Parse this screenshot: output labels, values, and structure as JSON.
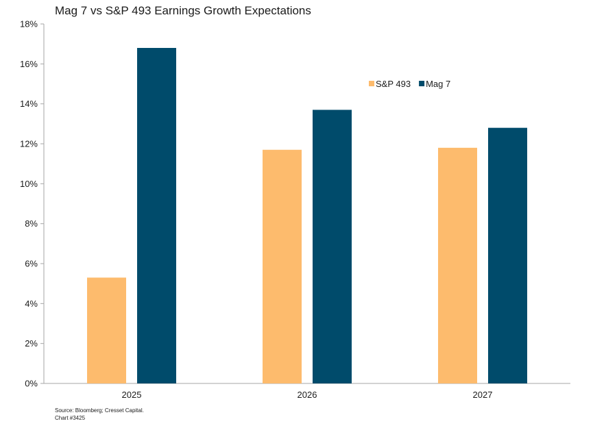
{
  "chart_data": {
    "type": "bar",
    "title": "Mag 7 vs S&P 493 Earnings Growth Expectations",
    "categories": [
      "2025",
      "2026",
      "2027"
    ],
    "series": [
      {
        "name": "S&P 493",
        "values": [
          5.3,
          11.7,
          11.8
        ],
        "color": "#FDBB6D"
      },
      {
        "name": "Mag 7",
        "values": [
          16.8,
          13.7,
          12.8
        ],
        "color": "#004B6B"
      }
    ],
    "ylim": [
      0,
      18
    ],
    "yticks": [
      0,
      2,
      4,
      6,
      8,
      10,
      12,
      14,
      16,
      18
    ],
    "ytick_format": "%",
    "grid": false,
    "legend_position": "top-right"
  },
  "footer": {
    "source": "Source: Bloomberg; Cresset Capital.",
    "chart_id": "Chart #3425"
  }
}
